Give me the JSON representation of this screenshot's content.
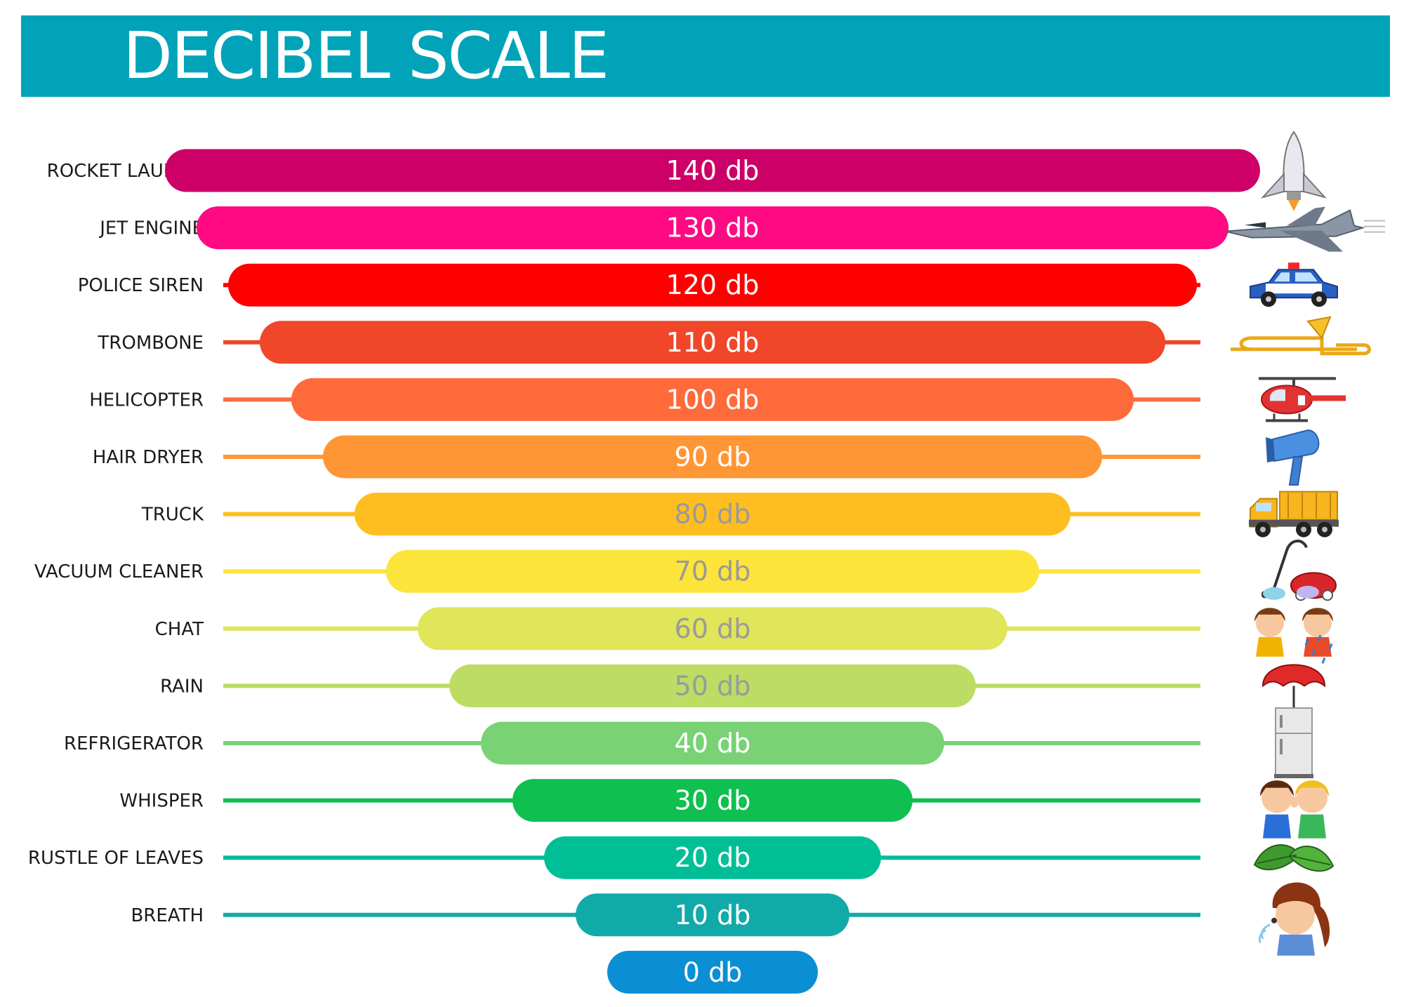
{
  "title": "DECIBEL SCALE",
  "colors": {
    "banner": "#00a3b8",
    "light_text": "#ffffff",
    "muted_text": "#9a9a9a"
  },
  "chart_data": {
    "type": "bar",
    "title": "DECIBEL SCALE",
    "unit": "db",
    "xlabel": "",
    "ylabel": "",
    "grid": false,
    "legend": "none",
    "xlim": [
      0,
      140
    ],
    "categories": [
      "ROCKET LAUNCH",
      "JET ENGINE",
      "POLICE SIREN",
      "TROMBONE",
      "HELICOPTER",
      "HAIR DRYER",
      "TRUCK",
      "VACUUM CLEANER",
      "CHAT",
      "RAIN",
      "REFRIGERATOR",
      "WHISPER",
      "RUSTLE OF LEAVES",
      "BREATH",
      ""
    ],
    "values": [
      140,
      130,
      120,
      110,
      100,
      90,
      80,
      70,
      60,
      50,
      40,
      30,
      20,
      10,
      0
    ],
    "bar_labels": [
      "140 db",
      "130 db",
      "120 db",
      "110 db",
      "100 db",
      "90 db",
      "80 db",
      "70 db",
      "60 db",
      "50 db",
      "40 db",
      "30 db",
      "20 db",
      "10 db",
      "0 db"
    ],
    "bar_colors": [
      "#cc0066",
      "#ff0a82",
      "#ff0000",
      "#f0462a",
      "#ff6a3a",
      "#ff9635",
      "#ffbe1f",
      "#fde43a",
      "#e0e55a",
      "#bcdc64",
      "#79d274",
      "#0fbf4f",
      "#00bf96",
      "#12aaa8",
      "#0a8fd4"
    ],
    "label_colors": [
      "#ffffff",
      "#ffffff",
      "#ffffff",
      "#ffffff",
      "#ffffff",
      "#ffffff",
      "#9a9a9a",
      "#9a9a9a",
      "#9a9a9a",
      "#9a9a9a",
      "#ffffff",
      "#ffffff",
      "#ffffff",
      "#ffffff",
      "#ffffff"
    ],
    "icons": [
      "rocket-icon",
      "jet-plane-icon",
      "police-car-icon",
      "trombone-icon",
      "helicopter-icon",
      "hair-dryer-icon",
      "truck-icon",
      "vacuum-cleaner-icon",
      "chatting-kids-icon",
      "umbrella-rain-icon",
      "refrigerator-icon",
      "whispering-kids-icon",
      "leaves-icon",
      "breathing-girl-icon",
      ""
    ]
  }
}
